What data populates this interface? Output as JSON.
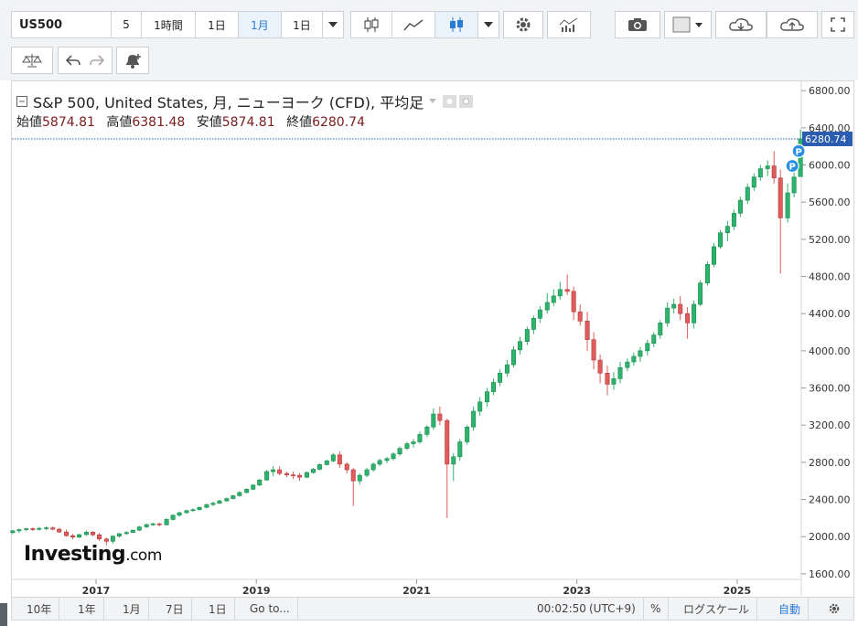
{
  "toolbar": {
    "symbol": "US500",
    "interval_input": "5",
    "interval_1h": "1時間",
    "interval_1d": "1日",
    "interval_1m": "1月",
    "interval_dropdown": "1日"
  },
  "legend": {
    "title": "S&P 500, United States, 月, ニューヨーク (CFD), 平均足",
    "open_label": "始値",
    "open_value": "5874.81",
    "high_label": "高値",
    "high_value": "6381.48",
    "low_label": "安値",
    "low_value": "5874.81",
    "close_label": "終値",
    "close_value": "6280.74"
  },
  "bottombar": {
    "range_10y": "10年",
    "range_1y": "1年",
    "range_1m": "1月",
    "range_7d": "7日",
    "range_1d": "1日",
    "goto": "Go to...",
    "clock": "00:02:50",
    "timezone": "(UTC+9)",
    "percent": "%",
    "log_scale": "ログスケール",
    "auto": "自動"
  },
  "logo": {
    "brand": "Investing",
    "suffix": ".com"
  },
  "colors": {
    "up": "#2db36b",
    "down": "#e05b5b",
    "accent": "#2a7bd3",
    "price_line": "#2a5db0"
  },
  "chart_data": {
    "type": "candlestick",
    "price_label": "6280.74",
    "yticks": [
      1600,
      2000,
      2400,
      2800,
      3200,
      3600,
      4000,
      4400,
      4800,
      5200,
      5600,
      6000,
      6400,
      6800
    ],
    "ylim": [
      1540,
      6900
    ],
    "xticks": [
      "2017",
      "2019",
      "2021",
      "2023",
      "2025"
    ],
    "xtick_positions": [
      2017,
      2019,
      2021,
      2023,
      2025
    ],
    "xlim": [
      2015.95,
      2025.8
    ],
    "annotation_markers": [
      "P",
      "P"
    ],
    "candles": [
      [
        2015.96,
        2043,
        2073,
        2027,
        2063
      ],
      [
        2016.04,
        2063,
        2088,
        2040,
        2075
      ],
      [
        2016.13,
        2075,
        2095,
        2060,
        2085
      ],
      [
        2016.21,
        2085,
        2100,
        2062,
        2078
      ],
      [
        2016.29,
        2078,
        2105,
        2065,
        2090
      ],
      [
        2016.38,
        2090,
        2112,
        2070,
        2095
      ],
      [
        2016.46,
        2095,
        2110,
        2068,
        2080
      ],
      [
        2016.54,
        2080,
        2095,
        2040,
        2050
      ],
      [
        2016.63,
        2050,
        2075,
        2000,
        2010
      ],
      [
        2016.71,
        2010,
        2030,
        1970,
        1995
      ],
      [
        2016.79,
        1995,
        2030,
        1985,
        2022
      ],
      [
        2016.88,
        2022,
        2065,
        2010,
        2048
      ],
      [
        2016.96,
        2048,
        2060,
        2005,
        2020
      ],
      [
        2017.04,
        2020,
        2040,
        1955,
        1975
      ],
      [
        2017.13,
        1975,
        1990,
        1905,
        1950
      ],
      [
        2017.21,
        1950,
        2015,
        1925,
        2005
      ],
      [
        2017.29,
        2005,
        2040,
        1990,
        2032
      ],
      [
        2017.38,
        2032,
        2060,
        2020,
        2045
      ],
      [
        2017.46,
        2045,
        2075,
        2040,
        2070
      ],
      [
        2017.54,
        2070,
        2115,
        2060,
        2105
      ],
      [
        2017.63,
        2105,
        2140,
        2095,
        2130
      ],
      [
        2017.71,
        2130,
        2150,
        2115,
        2138
      ],
      [
        2017.79,
        2138,
        2150,
        2110,
        2128
      ],
      [
        2017.88,
        2128,
        2200,
        2120,
        2185
      ],
      [
        2017.96,
        2185,
        2240,
        2175,
        2230
      ],
      [
        2018.04,
        2230,
        2270,
        2215,
        2258
      ],
      [
        2018.13,
        2258,
        2290,
        2245,
        2280
      ],
      [
        2018.21,
        2280,
        2305,
        2265,
        2290
      ],
      [
        2018.29,
        2290,
        2325,
        2280,
        2315
      ],
      [
        2018.38,
        2315,
        2355,
        2305,
        2345
      ],
      [
        2018.46,
        2345,
        2375,
        2330,
        2360
      ],
      [
        2018.54,
        2360,
        2395,
        2350,
        2385
      ],
      [
        2018.63,
        2385,
        2420,
        2375,
        2410
      ],
      [
        2018.71,
        2410,
        2450,
        2400,
        2440
      ],
      [
        2018.79,
        2440,
        2490,
        2430,
        2475
      ],
      [
        2018.88,
        2475,
        2520,
        2465,
        2510
      ],
      [
        2018.96,
        2510,
        2565,
        2500,
        2555
      ],
      [
        2019.04,
        2555,
        2620,
        2545,
        2610
      ],
      [
        2019.13,
        2610,
        2720,
        2600,
        2700
      ],
      [
        2019.21,
        2700,
        2760,
        2650,
        2720
      ],
      [
        2019.29,
        2720,
        2755,
        2660,
        2680
      ],
      [
        2019.38,
        2680,
        2700,
        2640,
        2665
      ],
      [
        2019.46,
        2665,
        2700,
        2620,
        2660
      ],
      [
        2019.54,
        2660,
        2685,
        2600,
        2640
      ],
      [
        2019.63,
        2640,
        2700,
        2630,
        2690
      ],
      [
        2019.71,
        2690,
        2740,
        2680,
        2725
      ],
      [
        2019.79,
        2725,
        2790,
        2715,
        2775
      ],
      [
        2019.88,
        2775,
        2830,
        2765,
        2815
      ],
      [
        2019.96,
        2815,
        2900,
        2800,
        2880
      ],
      [
        2020.04,
        2880,
        2920,
        2740,
        2780
      ],
      [
        2020.13,
        2780,
        2800,
        2680,
        2720
      ],
      [
        2020.21,
        2720,
        2740,
        2330,
        2600
      ],
      [
        2020.29,
        2600,
        2680,
        2560,
        2660
      ],
      [
        2020.38,
        2660,
        2740,
        2640,
        2720
      ],
      [
        2020.46,
        2720,
        2800,
        2700,
        2780
      ],
      [
        2020.54,
        2780,
        2840,
        2760,
        2820
      ],
      [
        2020.63,
        2820,
        2860,
        2790,
        2840
      ],
      [
        2020.71,
        2840,
        2910,
        2820,
        2890
      ],
      [
        2020.79,
        2890,
        2970,
        2870,
        2950
      ],
      [
        2020.88,
        2950,
        3020,
        2930,
        3000
      ],
      [
        2020.96,
        3000,
        3050,
        2960,
        3020
      ],
      [
        2021.04,
        3020,
        3130,
        3000,
        3100
      ],
      [
        2021.13,
        3100,
        3200,
        3070,
        3180
      ],
      [
        2021.21,
        3180,
        3380,
        3150,
        3320
      ],
      [
        2021.29,
        3320,
        3400,
        3200,
        3250
      ],
      [
        2021.38,
        3250,
        3270,
        2200,
        2780
      ],
      [
        2021.46,
        2780,
        2900,
        2600,
        2860
      ],
      [
        2021.54,
        2860,
        3050,
        2820,
        3020
      ],
      [
        2021.63,
        3020,
        3200,
        2990,
        3180
      ],
      [
        2021.71,
        3180,
        3400,
        3140,
        3350
      ],
      [
        2021.79,
        3350,
        3500,
        3300,
        3450
      ],
      [
        2021.88,
        3450,
        3600,
        3400,
        3560
      ],
      [
        2021.96,
        3560,
        3700,
        3520,
        3660
      ],
      [
        2022.04,
        3660,
        3800,
        3620,
        3760
      ],
      [
        2022.13,
        3760,
        3900,
        3720,
        3850
      ],
      [
        2022.21,
        3850,
        4050,
        3820,
        4010
      ],
      [
        2022.29,
        4010,
        4150,
        3960,
        4100
      ],
      [
        2022.38,
        4100,
        4260,
        4060,
        4230
      ],
      [
        2022.46,
        4230,
        4380,
        4180,
        4350
      ],
      [
        2022.54,
        4350,
        4480,
        4300,
        4440
      ],
      [
        2022.63,
        4440,
        4620,
        4400,
        4520
      ],
      [
        2022.71,
        4520,
        4660,
        4480,
        4590
      ],
      [
        2022.79,
        4590,
        4740,
        4550,
        4660
      ],
      [
        2022.88,
        4660,
        4820,
        4600,
        4640
      ],
      [
        2022.96,
        4640,
        4690,
        4330,
        4420
      ],
      [
        2023.04,
        4420,
        4500,
        4270,
        4320
      ],
      [
        2023.13,
        4320,
        4420,
        4000,
        4120
      ],
      [
        2023.21,
        4120,
        4200,
        3800,
        3900
      ],
      [
        2023.29,
        3900,
        3960,
        3650,
        3760
      ],
      [
        2023.38,
        3760,
        3840,
        3520,
        3640
      ],
      [
        2023.46,
        3640,
        3770,
        3580,
        3700
      ],
      [
        2023.54,
        3700,
        3880,
        3650,
        3820
      ],
      [
        2023.63,
        3820,
        3920,
        3780,
        3880
      ],
      [
        2023.71,
        3880,
        3980,
        3840,
        3940
      ],
      [
        2023.79,
        3940,
        4040,
        3880,
        4000
      ],
      [
        2023.88,
        4000,
        4120,
        3950,
        4080
      ],
      [
        2023.96,
        4080,
        4200,
        4040,
        4170
      ],
      [
        2024.04,
        4170,
        4330,
        4130,
        4300
      ],
      [
        2024.13,
        4300,
        4520,
        4260,
        4460
      ],
      [
        2024.21,
        4460,
        4560,
        4400,
        4500
      ],
      [
        2024.29,
        4500,
        4590,
        4330,
        4400
      ],
      [
        2024.38,
        4400,
        4470,
        4130,
        4300
      ],
      [
        2024.46,
        4300,
        4540,
        4240,
        4500
      ],
      [
        2024.54,
        4500,
        4760,
        4480,
        4730
      ],
      [
        2024.63,
        4730,
        4960,
        4700,
        4930
      ],
      [
        2024.71,
        4930,
        5160,
        4900,
        5120
      ],
      [
        2024.79,
        5120,
        5300,
        5100,
        5270
      ],
      [
        2024.88,
        5270,
        5400,
        5180,
        5340
      ],
      [
        2024.96,
        5340,
        5520,
        5300,
        5480
      ],
      [
        2025.04,
        5480,
        5660,
        5440,
        5620
      ],
      [
        2025.13,
        5620,
        5800,
        5580,
        5760
      ],
      [
        2025.21,
        5760,
        5910,
        5720,
        5870
      ],
      [
        2025.29,
        5870,
        6000,
        5830,
        5960
      ],
      [
        2025.38,
        5960,
        6050,
        5880,
        5990
      ],
      [
        2025.46,
        5990,
        6150,
        5800,
        5860
      ],
      [
        2025.54,
        5860,
        5950,
        4830,
        5430
      ],
      [
        2025.63,
        5430,
        5800,
        5380,
        5700
      ],
      [
        2025.71,
        5700,
        5980,
        5650,
        5870
      ],
      [
        2025.79,
        5874.81,
        6381.48,
        5874.81,
        6280.74
      ]
    ]
  }
}
